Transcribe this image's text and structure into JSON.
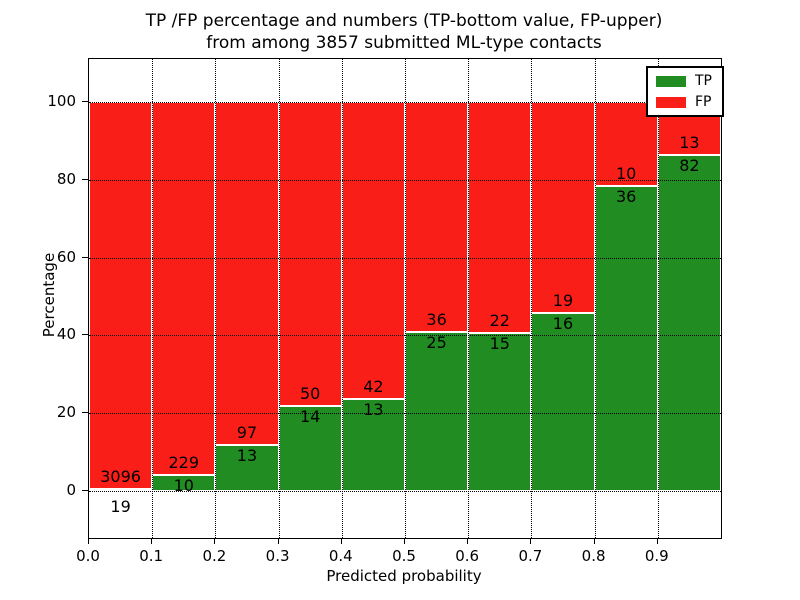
{
  "chart_data": {
    "type": "bar",
    "stacked": true,
    "normalized_to_percent": true,
    "title_line1": "TP /FP percentage and numbers (TP-bottom value, FP-upper)",
    "title_line2": "from among 3857 submitted ML-type contacts",
    "xlabel": "Predicted probability",
    "ylabel": "Percentage",
    "x_bins": [
      "0.0-0.1",
      "0.1-0.2",
      "0.2-0.3",
      "0.3-0.4",
      "0.4-0.5",
      "0.5-0.6",
      "0.6-0.7",
      "0.7-0.8",
      "0.8-0.9",
      "0.9-1.0"
    ],
    "x_tick_labels": [
      "0.0",
      "0.1",
      "0.2",
      "0.3",
      "0.4",
      "0.5",
      "0.6",
      "0.7",
      "0.8",
      "0.9"
    ],
    "y_ticks": [
      0,
      20,
      40,
      60,
      80,
      100
    ],
    "xlim": [
      0.0,
      1.0
    ],
    "ylim": [
      -12,
      111
    ],
    "grid": "dotted, both axes",
    "legend_position": "upper right",
    "series": [
      {
        "name": "TP",
        "color": "#218c21",
        "values": [
          19,
          10,
          13,
          14,
          13,
          25,
          15,
          16,
          36,
          82
        ]
      },
      {
        "name": "FP",
        "color": "#fa1e19",
        "values": [
          3096,
          229,
          97,
          50,
          42,
          36,
          22,
          19,
          10,
          13
        ]
      }
    ],
    "total_contacts": 3857
  }
}
